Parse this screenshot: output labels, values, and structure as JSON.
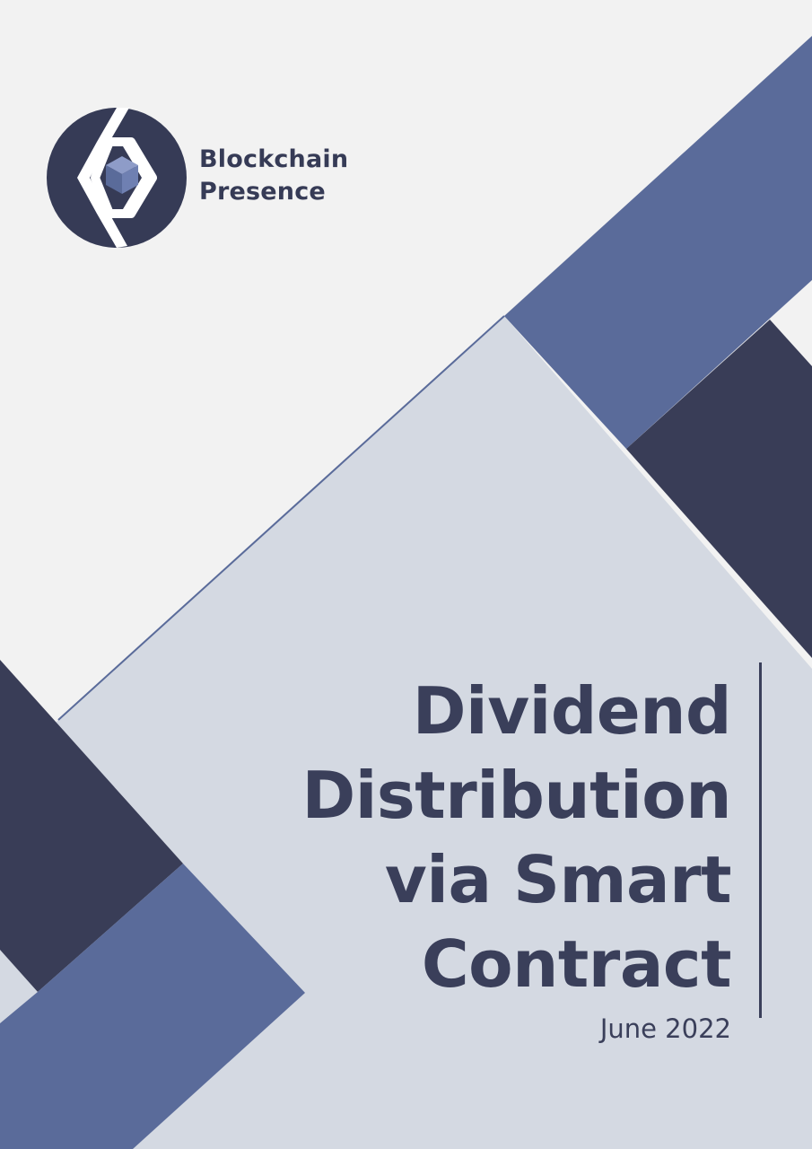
{
  "brand": {
    "line1": "Blockchain",
    "line2": "Presence"
  },
  "title": {
    "line1": "Dividend",
    "line2": "Distribution",
    "line3": "via Smart",
    "line4": "Contract"
  },
  "date": "June 2022",
  "colors": {
    "background": "#f2f2f2",
    "panel": "#d4d9e2",
    "accent_blue": "#5a6b9a",
    "dark_navy": "#393d57",
    "text": "#3a3f5a"
  },
  "icons": {
    "logo": "blockchain-presence-logo-icon"
  }
}
